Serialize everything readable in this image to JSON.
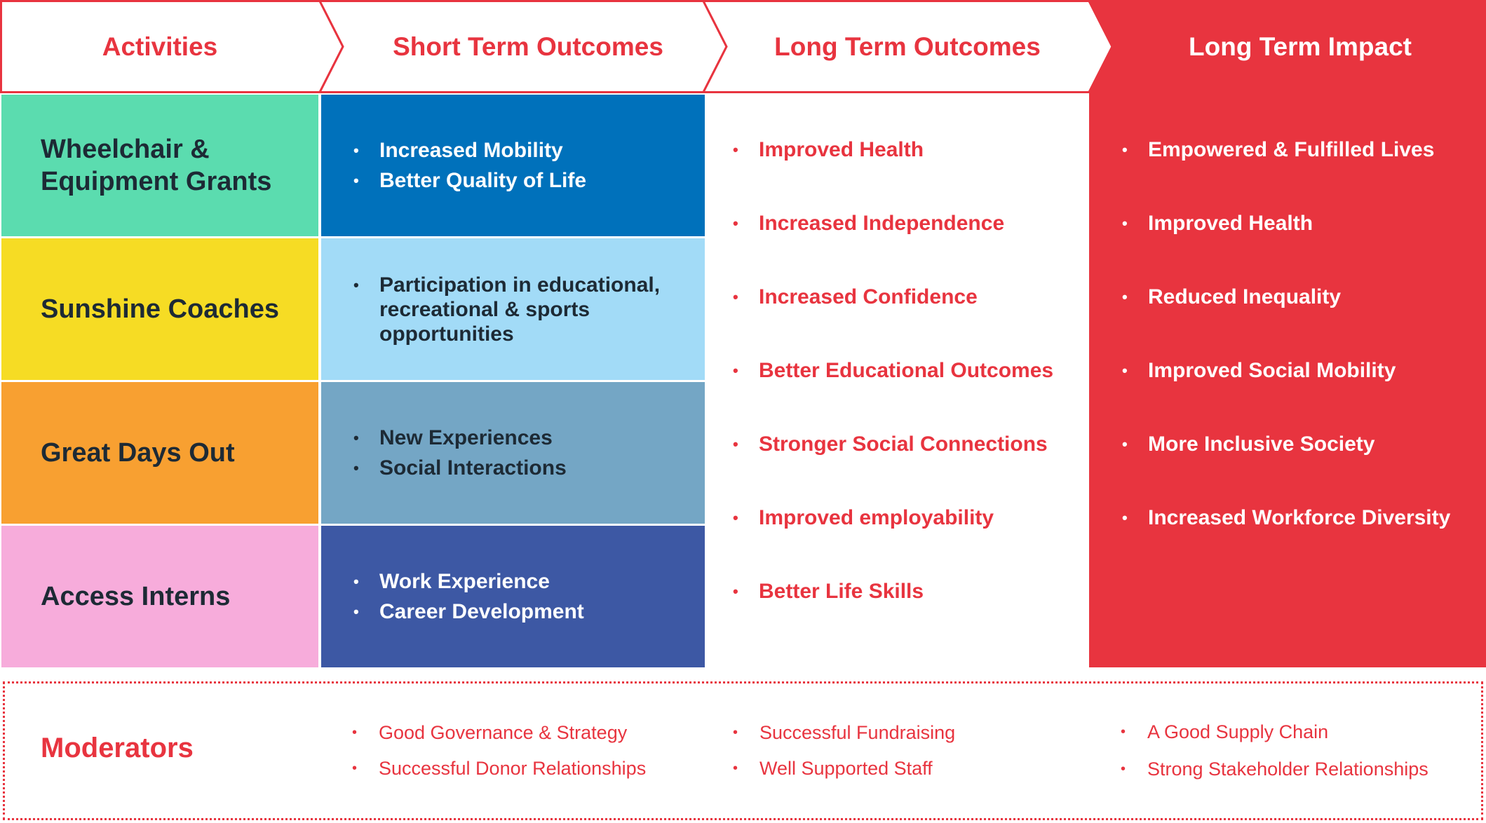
{
  "headers": {
    "activities": "Activities",
    "short_term": "Short Term Outcomes",
    "long_term": "Long Term Outcomes",
    "impact": "Long Term Impact"
  },
  "activities": [
    {
      "label": "Wheelchair & Equipment Grants",
      "color": "#5bdcaf"
    },
    {
      "label": "Sunshine Coaches",
      "color": "#f6dc24"
    },
    {
      "label": "Great Days Out",
      "color": "#f8a031"
    },
    {
      "label": "Access Interns",
      "color": "#f7acdb"
    }
  ],
  "short_term": [
    {
      "items": [
        "Increased Mobility",
        "Better Quality of Life"
      ],
      "color": "#0071bb"
    },
    {
      "items": [
        "Participation in educational, recreational & sports opportunities"
      ],
      "color": "#a2dbf7"
    },
    {
      "items": [
        "New Experiences",
        "Social Interactions"
      ],
      "color": "#74a6c5"
    },
    {
      "items": [
        "Work Experience",
        "Career Development"
      ],
      "color": "#3d58a4"
    }
  ],
  "long_term_outcomes": [
    "Improved Health",
    "Increased Independence",
    "Increased Confidence",
    "Better Educational Outcomes",
    "Stronger Social Connections",
    "Improved employability",
    "Better Life Skills"
  ],
  "long_term_impact": [
    "Empowered & Fulfilled Lives",
    "Improved Health",
    "Reduced Inequality",
    "Improved Social Mobility",
    "More Inclusive Society",
    "Increased Workforce Diversity"
  ],
  "moderators": {
    "title": "Moderators",
    "col1": [
      "Good Governance & Strategy",
      "Successful Donor Relationships"
    ],
    "col2": [
      "Successful Fundraising",
      "Well Supported Staff"
    ],
    "col3": [
      "A Good Supply Chain",
      "Strong Stakeholder Relationships"
    ]
  },
  "colors": {
    "accent_red": "#e8343f",
    "text_dark": "#1d2a35"
  }
}
